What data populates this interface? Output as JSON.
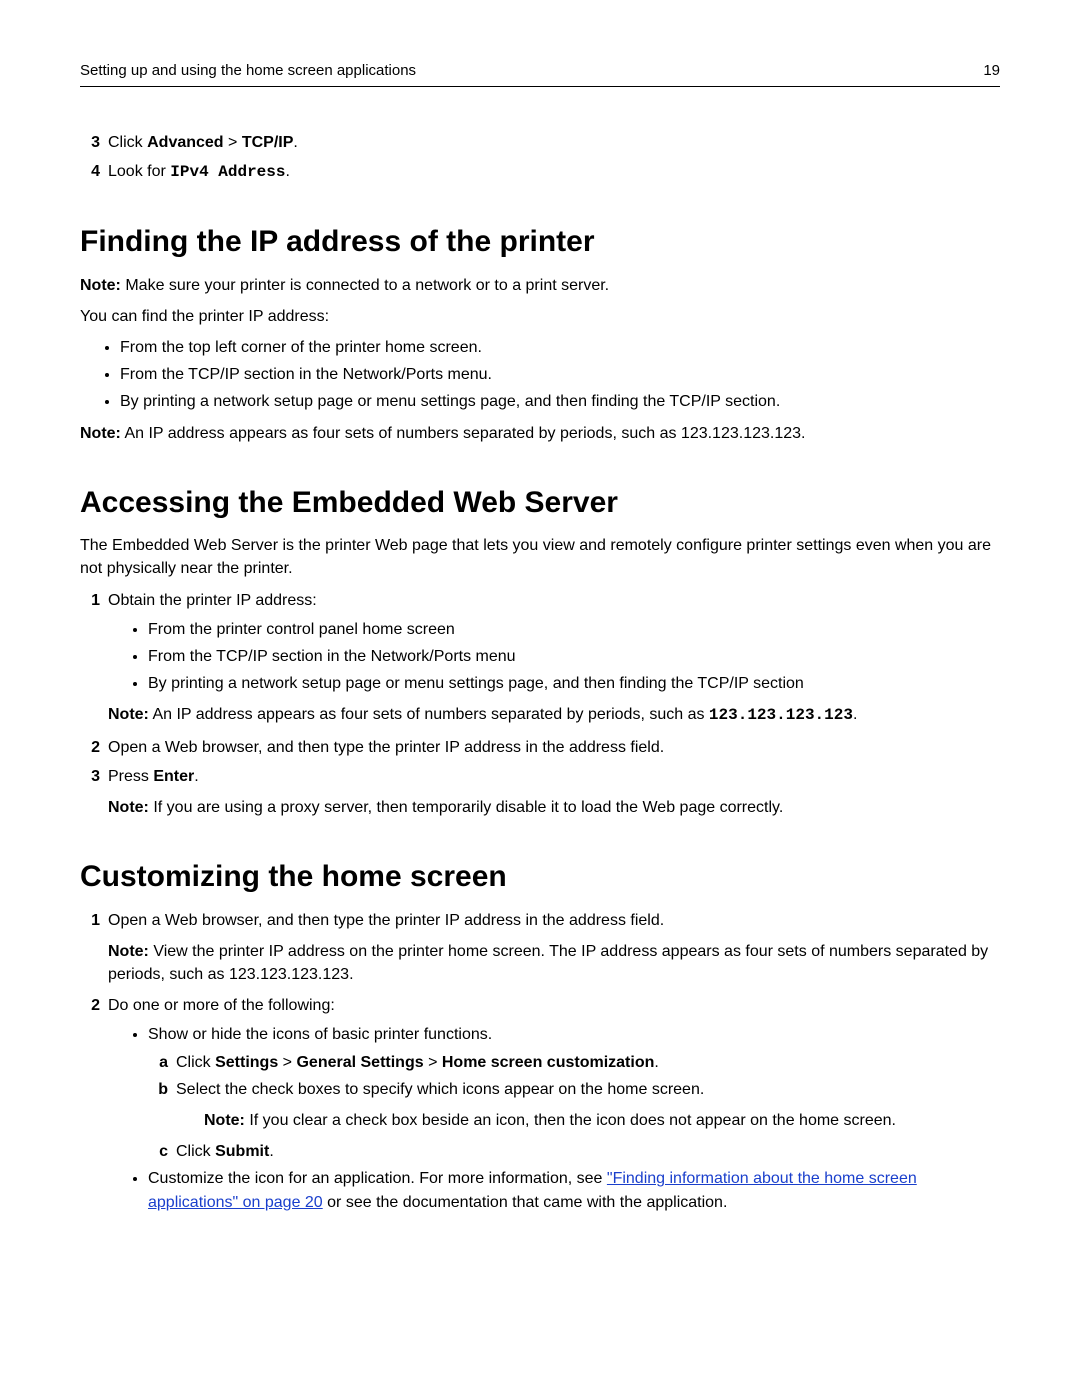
{
  "header": {
    "title": "Setting up and using the home screen applications",
    "page_number": "19"
  },
  "intro_steps": {
    "step3": {
      "num": "3",
      "prefix": "Click ",
      "bold1": "Advanced",
      "sep": " > ",
      "bold2": "TCP/IP",
      "suffix": "."
    },
    "step4": {
      "num": "4",
      "prefix": "Look for ",
      "mono": "IPv4 Address",
      "suffix": "."
    }
  },
  "section1": {
    "heading": "Finding the IP address of the printer",
    "note_label": "Note:",
    "note_text": " Make sure your printer is connected to a network or to a print server.",
    "lead": "You can find the printer IP address:",
    "bullets": [
      "From the top left corner of the printer home screen.",
      "From the TCP/IP section in the Network/Ports menu.",
      "By printing a network setup page or menu settings page, and then finding the TCP/IP section."
    ],
    "note2_label": "Note:",
    "note2_text": " An IP address appears as four sets of numbers separated by periods, such as 123.123.123.123."
  },
  "section2": {
    "heading": "Accessing the Embedded Web Server",
    "intro": "The Embedded Web Server is the printer Web page that lets you view and remotely configure printer settings even when you are not physically near the printer.",
    "step1": {
      "num": "1",
      "text": "Obtain the printer IP address:"
    },
    "bullets": [
      "From the printer control panel home screen",
      "From the TCP/IP section in the Network/Ports menu",
      "By printing a network setup page or menu settings page, and then finding the TCP/IP section"
    ],
    "note1_label": "Note:",
    "note1_text_pre": " An IP address appears as four sets of numbers separated by periods, such as ",
    "note1_mono": "123.123.123.123",
    "note1_text_post": ".",
    "step2": {
      "num": "2",
      "text": "Open a Web browser, and then type the printer IP address in the address field."
    },
    "step3": {
      "num": "3",
      "prefix": "Press ",
      "bold": "Enter",
      "suffix": "."
    },
    "note2_label": "Note:",
    "note2_text": " If you are using a proxy server, then temporarily disable it to load the Web page correctly."
  },
  "section3": {
    "heading": "Customizing the home screen",
    "step1": {
      "num": "1",
      "text": "Open a Web browser, and then type the printer IP address in the address field."
    },
    "note1_label": "Note:",
    "note1_text": " View the printer IP address on the printer home screen. The IP address appears as four sets of numbers separated by periods, such as 123.123.123.123.",
    "step2": {
      "num": "2",
      "text": "Do one or more of the following:"
    },
    "bullet1": "Show or hide the icons of basic printer functions.",
    "sub_a": {
      "letter": "a",
      "prefix": "Click ",
      "b1": "Settings",
      "s1": " > ",
      "b2": "General Settings",
      "s2": " > ",
      "b3": "Home screen customization",
      "suffix": "."
    },
    "sub_b": {
      "letter": "b",
      "text": "Select the check boxes to specify which icons appear on the home screen."
    },
    "sub_note_label": "Note:",
    "sub_note_text": " If you clear a check box beside an icon, then the icon does not appear on the home screen.",
    "sub_c": {
      "letter": "c",
      "prefix": "Click ",
      "bold": "Submit",
      "suffix": "."
    },
    "bullet2_pre": "Customize the icon for an application. For more information, see ",
    "bullet2_link": "\"Finding information about the home screen applications\" on page 20",
    "bullet2_post": " or see the documentation that came with the application."
  }
}
